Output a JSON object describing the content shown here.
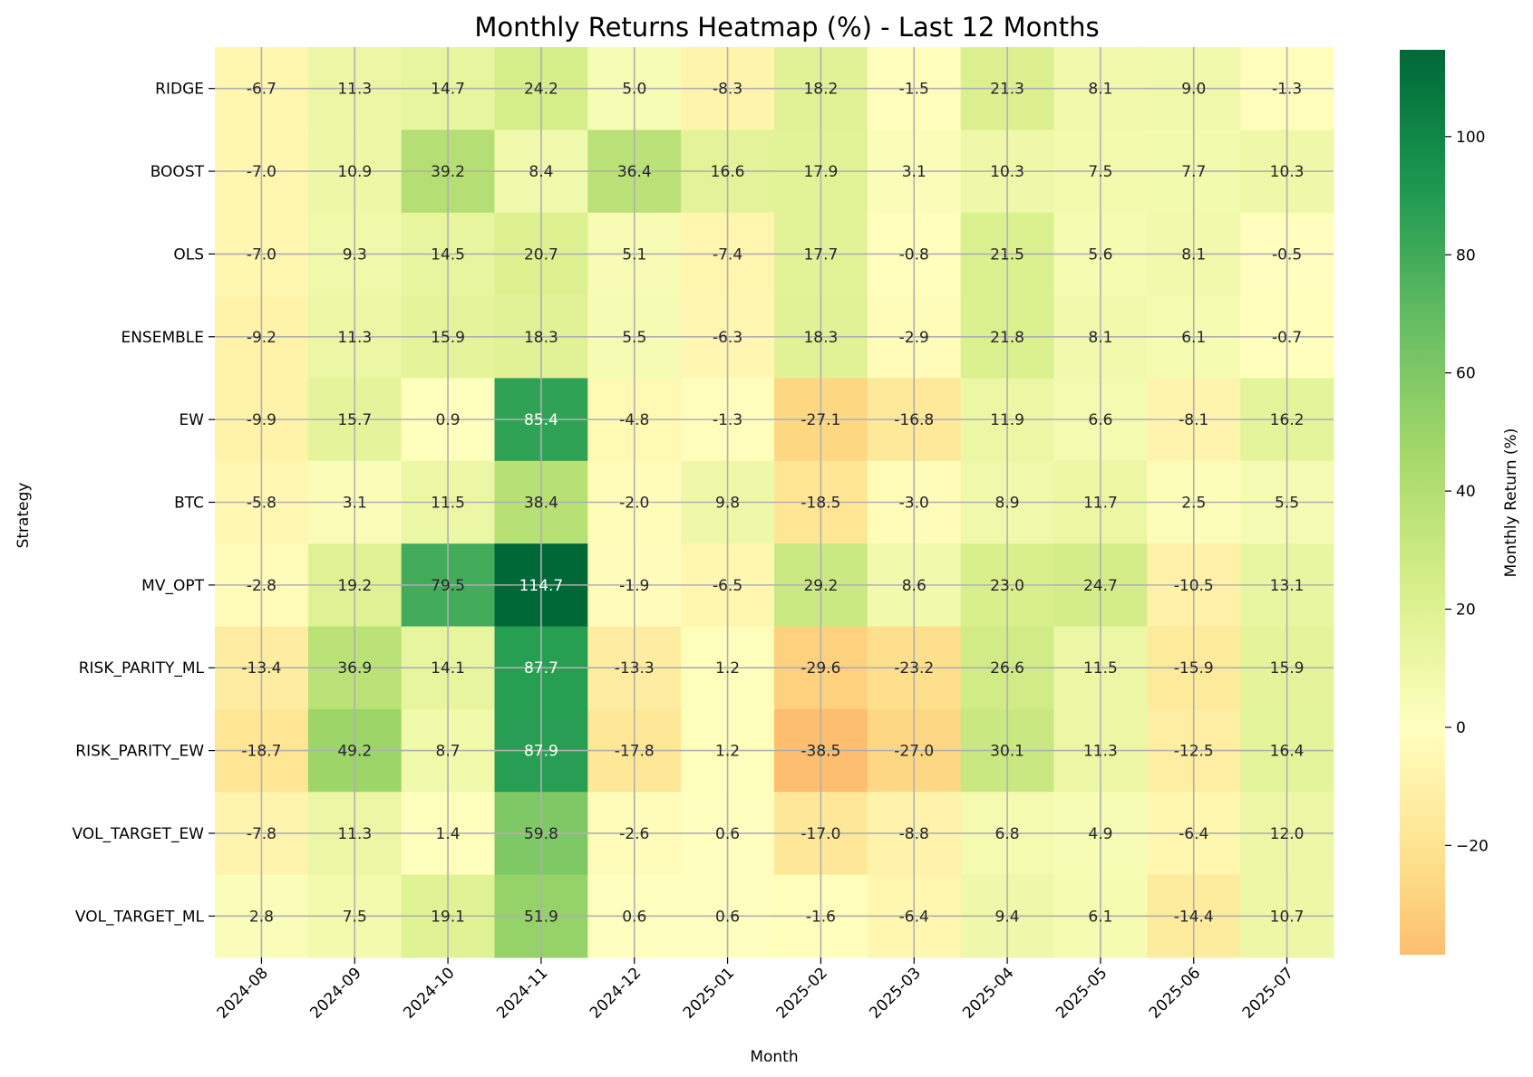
{
  "chart_data": {
    "type": "heatmap",
    "title": "Monthly Returns Heatmap (%) - Last 12 Months",
    "xlabel": "Month",
    "ylabel": "Strategy",
    "colorbar_label": "Monthly Return (%)",
    "colorbar_ticks": [
      -20,
      0,
      20,
      40,
      60,
      80,
      100
    ],
    "colorbar_tick_labels": [
      "−20",
      "0",
      "20",
      "40",
      "60",
      "80",
      "100"
    ],
    "vmin": -38.5,
    "vmax": 114.7,
    "colormap": "RdYlGn",
    "grid": true,
    "x": [
      "2024-08",
      "2024-09",
      "2024-10",
      "2024-11",
      "2024-12",
      "2025-01",
      "2025-02",
      "2025-03",
      "2025-04",
      "2025-05",
      "2025-06",
      "2025-07"
    ],
    "y": [
      "RIDGE",
      "BOOST",
      "OLS",
      "ENSEMBLE",
      "EW",
      "BTC",
      "MV_OPT",
      "RISK_PARITY_ML",
      "RISK_PARITY_EW",
      "VOL_TARGET_EW",
      "VOL_TARGET_ML"
    ],
    "values": [
      [
        -6.7,
        11.3,
        14.7,
        24.2,
        5.0,
        -8.3,
        18.2,
        -1.5,
        21.3,
        8.1,
        9.0,
        -1.3
      ],
      [
        -7.0,
        10.9,
        39.2,
        8.4,
        36.4,
        16.6,
        17.9,
        3.1,
        10.3,
        7.5,
        7.7,
        10.3
      ],
      [
        -7.0,
        9.3,
        14.5,
        20.7,
        5.1,
        -7.4,
        17.7,
        -0.8,
        21.5,
        5.6,
        8.1,
        -0.5
      ],
      [
        -9.2,
        11.3,
        15.9,
        18.3,
        5.5,
        -6.3,
        18.3,
        -2.9,
        21.8,
        8.1,
        6.1,
        -0.7
      ],
      [
        -9.9,
        15.7,
        0.9,
        85.4,
        -4.8,
        -1.3,
        -27.1,
        -16.8,
        11.9,
        6.6,
        -8.1,
        16.2
      ],
      [
        -5.8,
        3.1,
        11.5,
        38.4,
        -2.0,
        9.8,
        -18.5,
        -3.0,
        8.9,
        11.7,
        2.5,
        5.5
      ],
      [
        -2.8,
        19.2,
        79.5,
        114.7,
        -1.9,
        -6.5,
        29.2,
        8.6,
        23.0,
        24.7,
        -10.5,
        13.1
      ],
      [
        -13.4,
        36.9,
        14.1,
        87.7,
        -13.3,
        1.2,
        -29.6,
        -23.2,
        26.6,
        11.5,
        -15.9,
        15.9
      ],
      [
        -18.7,
        49.2,
        8.7,
        87.9,
        -17.8,
        1.2,
        -38.5,
        -27.0,
        30.1,
        11.3,
        -12.5,
        16.4
      ],
      [
        -7.8,
        11.3,
        1.4,
        59.8,
        -2.6,
        0.6,
        -17.0,
        -8.8,
        6.8,
        4.9,
        -6.4,
        12.0
      ],
      [
        2.8,
        7.5,
        19.1,
        51.9,
        0.6,
        0.6,
        -1.6,
        -6.4,
        9.4,
        6.1,
        -14.4,
        10.7
      ]
    ]
  }
}
